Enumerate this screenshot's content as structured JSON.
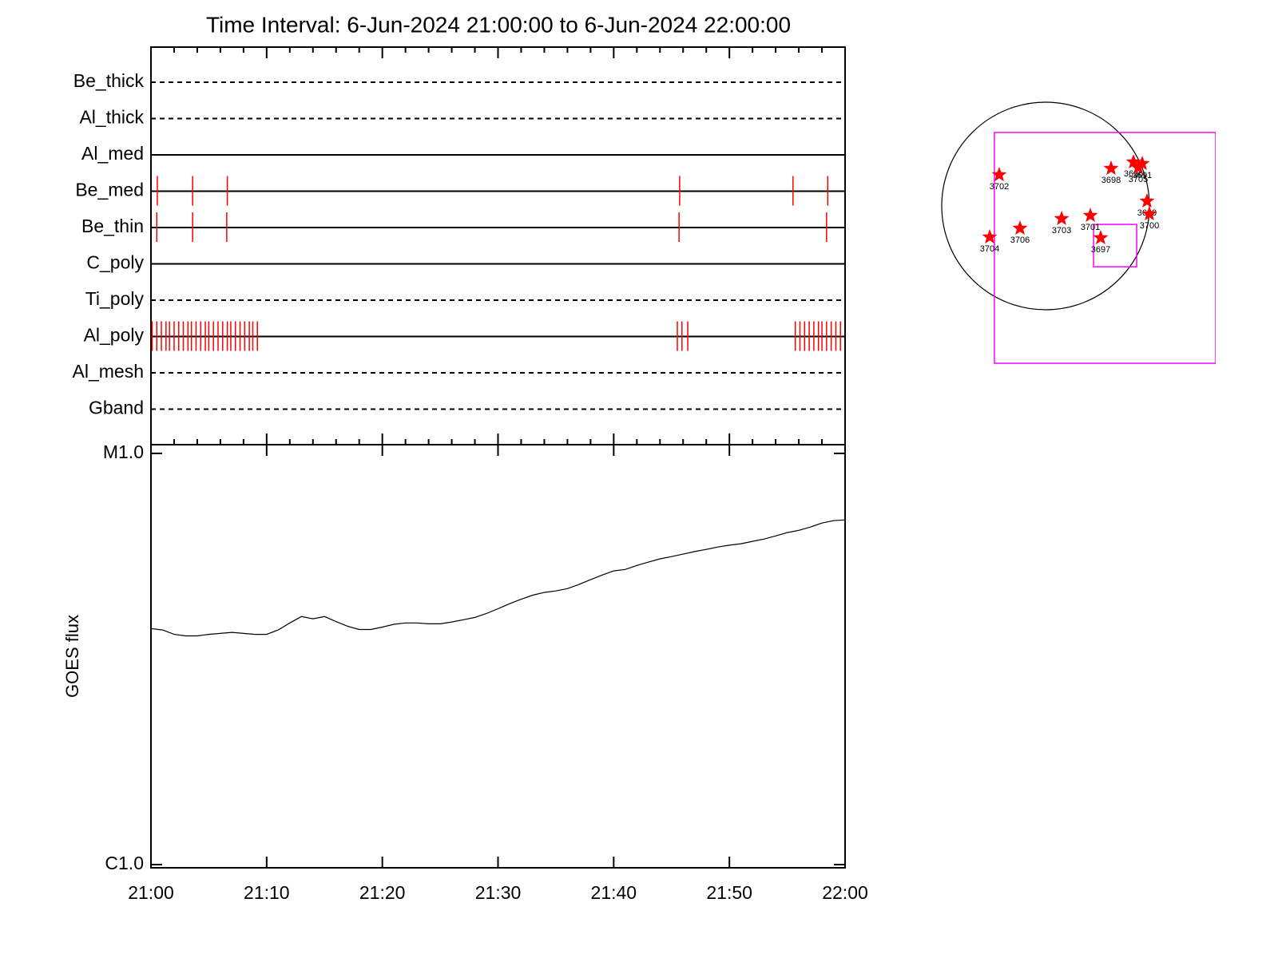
{
  "chart_data": [
    {
      "type": "timeline",
      "title": "Time Interval:  6-Jun-2024 21:00:00 to  6-Jun-2024 22:00:00",
      "categories": [
        "Be_thick",
        "Al_thick",
        "Al_med",
        "Be_med",
        "Be_thin",
        "C_poly",
        "Ti_poly",
        "Al_poly",
        "Al_mesh",
        "Gband"
      ],
      "line_styles": [
        "dashed",
        "dashed",
        "solid",
        "solid",
        "solid",
        "solid",
        "dashed",
        "solid",
        "dashed",
        "dashed"
      ],
      "events": [
        [],
        [],
        [],
        [
          0.55,
          3.6,
          6.6,
          45.7,
          55.5,
          58.5
        ],
        [
          0.5,
          3.6,
          6.55,
          45.65,
          58.4
        ],
        [],
        [],
        [
          0.1,
          0.5,
          0.9,
          1.3,
          1.6,
          2.0,
          2.4,
          2.8,
          3.2,
          3.5,
          3.9,
          4.3,
          4.7,
          5.0,
          5.4,
          5.8,
          6.2,
          6.6,
          6.9,
          7.3,
          7.7,
          8.1,
          8.5,
          8.8,
          9.2,
          45.5,
          45.9,
          46.4,
          55.7,
          56.1,
          56.5,
          56.9,
          57.3,
          57.7,
          58.0,
          58.4,
          58.8,
          59.2,
          59.6
        ],
        [],
        []
      ],
      "event_color": "#ff0000",
      "xlim": [
        0,
        60
      ],
      "xticks": [
        0,
        10,
        20,
        30,
        40,
        50,
        60
      ],
      "xminorticks": [
        2,
        4,
        6,
        8,
        12,
        14,
        16,
        18,
        22,
        24,
        26,
        28,
        32,
        34,
        36,
        38,
        42,
        44,
        46,
        48,
        52,
        54,
        56,
        58
      ]
    },
    {
      "type": "line",
      "ylabel": "GOES flux",
      "log_scale": true,
      "color": "#000000",
      "x": [
        0,
        1,
        2,
        3,
        4,
        5,
        6,
        7,
        8,
        9,
        10,
        11,
        12,
        13,
        14,
        15,
        16,
        17,
        18,
        19,
        20,
        21,
        22,
        23,
        24,
        25,
        26,
        27,
        28,
        29,
        30,
        31,
        32,
        33,
        34,
        35,
        36,
        37,
        38,
        39,
        40,
        41,
        42,
        43,
        44,
        45,
        46,
        47,
        48,
        49,
        50,
        51,
        52,
        53,
        54,
        55,
        56,
        57,
        58,
        59,
        60
      ],
      "values": [
        3.75e-06,
        3.72e-06,
        3.63e-06,
        3.6e-06,
        3.6e-06,
        3.63e-06,
        3.65e-06,
        3.67e-06,
        3.65e-06,
        3.63e-06,
        3.63e-06,
        3.72e-06,
        3.87e-06,
        4.01e-06,
        3.96e-06,
        4.01e-06,
        3.9e-06,
        3.8e-06,
        3.73e-06,
        3.73e-06,
        3.78e-06,
        3.84e-06,
        3.87e-06,
        3.87e-06,
        3.85e-06,
        3.85e-06,
        3.89e-06,
        3.94e-06,
        3.99e-06,
        4.08e-06,
        4.19e-06,
        4.31e-06,
        4.42e-06,
        4.52e-06,
        4.59e-06,
        4.63e-06,
        4.69e-06,
        4.8e-06,
        4.93e-06,
        5.06e-06,
        5.18e-06,
        5.22e-06,
        5.34e-06,
        5.44e-06,
        5.54e-06,
        5.61e-06,
        5.69e-06,
        5.77e-06,
        5.84e-06,
        5.92e-06,
        5.98e-06,
        6.03e-06,
        6.11e-06,
        6.19e-06,
        6.3e-06,
        6.42e-06,
        6.5e-06,
        6.62e-06,
        6.77e-06,
        6.86e-06,
        6.89e-06
      ],
      "xlim": [
        0,
        60
      ],
      "xticks": [
        {
          "value": 0,
          "label": "21:00"
        },
        {
          "value": 10,
          "label": "21:10"
        },
        {
          "value": 20,
          "label": "21:20"
        },
        {
          "value": 30,
          "label": "21:30"
        },
        {
          "value": 40,
          "label": "21:40"
        },
        {
          "value": 50,
          "label": "21:50"
        },
        {
          "value": 60,
          "label": "22:00"
        }
      ],
      "ylim": [
        1e-06,
        1.05e-05
      ],
      "yticks": [
        {
          "value": 1e-06,
          "label": "C1.0"
        },
        {
          "value": 1e-05,
          "label": "M1.0"
        }
      ]
    },
    {
      "type": "map",
      "radius": 946,
      "box_color": "#ff00ff",
      "boxes": [
        {
          "x": [
            -466,
            1550
          ],
          "y": [
            -1434,
            670
          ]
        },
        {
          "x": [
            437,
            830
          ],
          "y": [
            -554,
            -168
          ]
        }
      ],
      "color": "#ff0000",
      "points": [
        {
          "name": "3702",
          "x": -422,
          "y": 284
        },
        {
          "name": "3698",
          "x": 597,
          "y": 342
        },
        {
          "name": "3696",
          "x": 801,
          "y": 400
        },
        {
          "name": "3691",
          "x": 881,
          "y": 386
        },
        {
          "name": "3705",
          "x": 844,
          "y": 349
        },
        {
          "name": "3699",
          "x": 924,
          "y": 44
        },
        {
          "name": "3700",
          "x": 946,
          "y": -73
        },
        {
          "name": "3701",
          "x": 408,
          "y": -87
        },
        {
          "name": "3703",
          "x": 146,
          "y": -116
        },
        {
          "name": "3706",
          "x": -233,
          "y": -204
        },
        {
          "name": "3704",
          "x": -509,
          "y": -284
        },
        {
          "name": "3697",
          "x": 502,
          "y": -291
        }
      ]
    }
  ]
}
